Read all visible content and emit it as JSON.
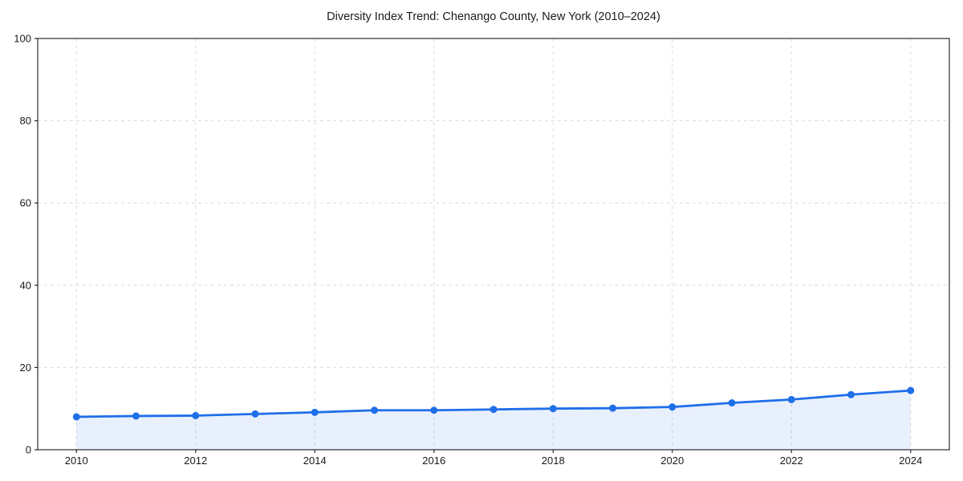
{
  "figure": {
    "background_color": "#ffffff"
  },
  "chart_data": {
    "type": "line",
    "title": "Diversity Index Trend: Chenango County, New York (2010–2024)",
    "xlabel": "",
    "ylabel": "",
    "x": [
      2010,
      2011,
      2012,
      2013,
      2014,
      2015,
      2016,
      2017,
      2018,
      2019,
      2020,
      2021,
      2022,
      2023,
      2024
    ],
    "series": [
      {
        "name": "Diversity Index",
        "values": [
          8.0,
          8.2,
          8.3,
          8.7,
          9.1,
          9.6,
          9.6,
          9.8,
          10.0,
          10.1,
          10.4,
          11.4,
          12.2,
          13.4,
          14.4
        ],
        "line_color": "#1f6fe8",
        "line_width": 2.8,
        "marker": "circle",
        "marker_color": "#1f6fe8",
        "marker_radius": 4.5,
        "area_fill": true,
        "fill_color": "#1f6fe8",
        "fill_opacity": 0.1
      }
    ],
    "xlim": [
      2009.35,
      2024.65
    ],
    "ylim": [
      0,
      100
    ],
    "xticks": [
      2010,
      2012,
      2014,
      2016,
      2018,
      2020,
      2022,
      2024
    ],
    "yticks": [
      0,
      20,
      40,
      60,
      80,
      100
    ],
    "grid": true,
    "grid_line_style": "dashed",
    "grid_color": "#dcdcdc",
    "axis_color": "#2b2b2b",
    "tick_label_color": "#1a1a1a",
    "title_color": "#1a1a1a",
    "legend": "none"
  }
}
